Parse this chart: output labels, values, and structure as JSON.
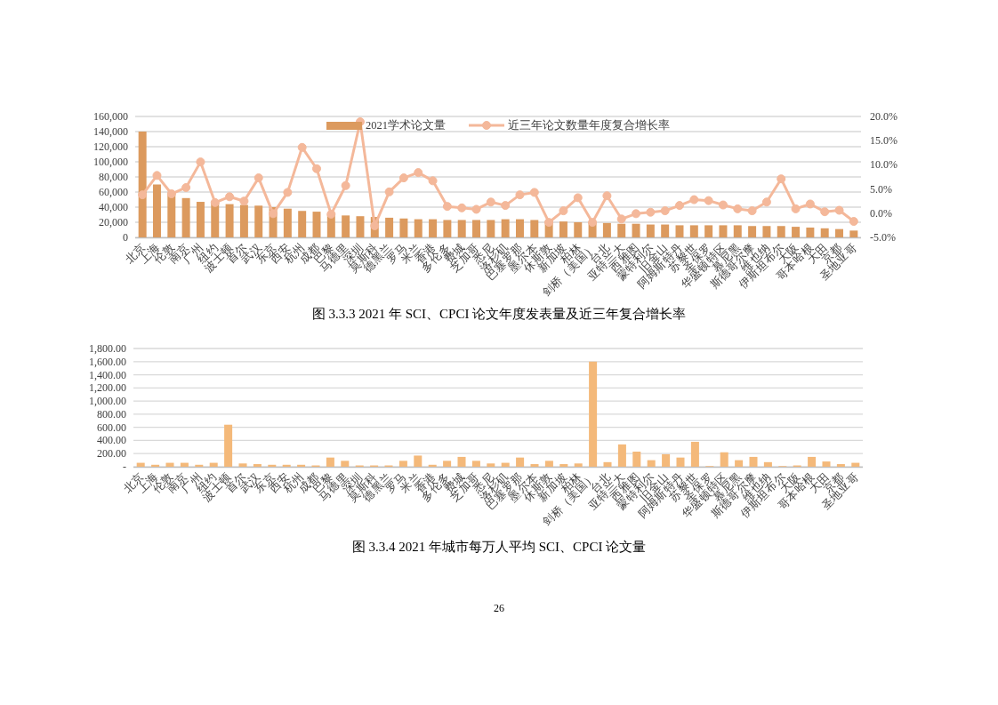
{
  "chart_data": [
    {
      "type": "bar",
      "title": "图 3.3.3 2021 年 SCI、CPCI 论文年度发表量及近三年复合增长率",
      "categories": [
        "北京",
        "上海",
        "伦敦",
        "南京",
        "广州",
        "纽约",
        "波士顿",
        "首尔",
        "武汉",
        "东京",
        "西安",
        "杭州",
        "成都",
        "巴黎",
        "马德里",
        "深圳",
        "莫斯科",
        "德黑兰",
        "罗马",
        "米兰",
        "香港",
        "多伦多",
        "费城",
        "芝加哥",
        "悉尼",
        "洛杉矶",
        "巴塞罗那",
        "墨尔本",
        "休斯敦",
        "新加坡",
        "柏林",
        "剑桥（美国）",
        "台北",
        "亚特兰大",
        "西雅图",
        "蒙特利尔",
        "旧金山",
        "阿姆斯特丹",
        "苏黎世",
        "圣保罗",
        "华盛顿特区",
        "慕尼黑",
        "斯德哥尔摩",
        "维也纳",
        "伊斯坦布尔",
        "大阪",
        "哥本哈根",
        "大田",
        "京都",
        "圣地亚哥"
      ],
      "series": [
        {
          "name": "2021学术论文量",
          "color": "#dc9a5e",
          "values": [
            140000,
            70000,
            59000,
            52000,
            47000,
            46000,
            44000,
            43000,
            42000,
            40000,
            38000,
            35000,
            34000,
            31000,
            29000,
            28000,
            27000,
            26000,
            25000,
            24000,
            24000,
            23000,
            23000,
            23000,
            23000,
            24000,
            24000,
            23000,
            22000,
            21000,
            20000,
            20000,
            19000,
            18000,
            18000,
            17000,
            17000,
            16000,
            16000,
            16000,
            16000,
            16000,
            15000,
            15000,
            15000,
            14000,
            13000,
            12000,
            11000,
            9000
          ]
        },
        {
          "name": "近三年论文数量年度复合增长率",
          "type": "line",
          "axis": "y2",
          "color": "#f4b89a",
          "values": [
            3.8,
            7.8,
            4.0,
            5.3,
            10.6,
            2.2,
            3.4,
            2.5,
            7.3,
            -0.1,
            4.3,
            13.6,
            9.2,
            -0.2,
            5.7,
            18.9,
            -2.6,
            4.4,
            7.3,
            8.4,
            6.7,
            1.4,
            1.1,
            0.8,
            2.3,
            1.6,
            3.8,
            4.3,
            -1.9,
            0.5,
            3.2,
            -1.9,
            3.6,
            -1.2,
            -0.1,
            0.2,
            0.5,
            1.6,
            2.8,
            2.6,
            1.7,
            0.9,
            0.5,
            2.3,
            7.1,
            0.9,
            1.9,
            0.3,
            0.6,
            -1.7
          ]
        }
      ],
      "ylim": [
        0,
        160000
      ],
      "yticks": [
        0,
        {
          "value": 20000,
          "label": "20,000"
        },
        {
          "value": 40000,
          "label": "40,000"
        },
        {
          "value": 60000,
          "label": "60,000"
        },
        {
          "value": 80000,
          "label": "80,000"
        },
        {
          "value": 100000,
          "label": "100,000"
        },
        {
          "value": 120000,
          "label": "120,000"
        },
        {
          "value": 140000,
          "label": "140,000"
        },
        {
          "value": 160000,
          "label": "160,000"
        }
      ],
      "y2lim": [
        -5,
        20
      ],
      "y2ticks": [
        {
          "value": -5,
          "label": "-5.0%"
        },
        {
          "value": 0,
          "label": "0.0%"
        },
        {
          "value": 5,
          "label": "5.0%"
        },
        {
          "value": 10,
          "label": "10.0%"
        },
        {
          "value": 15,
          "label": "15.0%"
        },
        {
          "value": 20,
          "label": "20.0%"
        }
      ],
      "grid": "y",
      "legend": "top",
      "marker": "circle"
    },
    {
      "type": "bar",
      "title": "图 3.3.4 2021 年城市每万人平均 SCI、CPCI 论文量",
      "categories": [
        "北京",
        "上海",
        "伦敦",
        "南京",
        "广州",
        "纽约",
        "波士顿",
        "首尔",
        "武汉",
        "东京",
        "西安",
        "杭州",
        "成都",
        "巴黎",
        "马德里",
        "深圳",
        "莫斯科",
        "德黑兰",
        "罗马",
        "米兰",
        "香港",
        "多伦多",
        "费城",
        "芝加哥",
        "悉尼",
        "洛杉矶",
        "巴塞罗那",
        "墨尔本",
        "休斯敦",
        "新加坡",
        "柏林",
        "剑桥（美国）",
        "台北",
        "亚特兰大",
        "西雅图",
        "蒙特利尔",
        "旧金山",
        "阿姆斯特丹",
        "苏黎世",
        "圣保罗",
        "华盛顿特区",
        "慕尼黑",
        "斯德哥尔摩",
        "维也纳",
        "伊斯坦布尔",
        "大阪",
        "哥本哈根",
        "大田",
        "京都",
        "圣地亚哥"
      ],
      "color": "#f4b97a",
      "values": [
        60,
        30,
        60,
        60,
        30,
        60,
        640,
        50,
        40,
        30,
        30,
        30,
        20,
        140,
        90,
        20,
        20,
        20,
        90,
        170,
        30,
        90,
        150,
        90,
        50,
        60,
        140,
        40,
        90,
        40,
        50,
        1600,
        70,
        340,
        230,
        100,
        190,
        140,
        380,
        10,
        220,
        100,
        150,
        70,
        10,
        20,
        150,
        80,
        40,
        60
      ],
      "ylim": [
        0,
        1800
      ],
      "yticks": [
        {
          "value": 0,
          "label": "-"
        },
        {
          "value": 200,
          "label": "200.00"
        },
        {
          "value": 400,
          "label": "400.00"
        },
        {
          "value": 600,
          "label": "600.00"
        },
        {
          "value": 800,
          "label": "800.00"
        },
        {
          "value": 1000,
          "label": "1,000.00"
        },
        {
          "value": 1200,
          "label": "1,200.00"
        },
        {
          "value": 1400,
          "label": "1,400.00"
        },
        {
          "value": 1600,
          "label": "1,600.00"
        },
        {
          "value": 1800,
          "label": "1,800.00"
        }
      ],
      "grid": "y",
      "annotations": [
        "26"
      ]
    }
  ]
}
